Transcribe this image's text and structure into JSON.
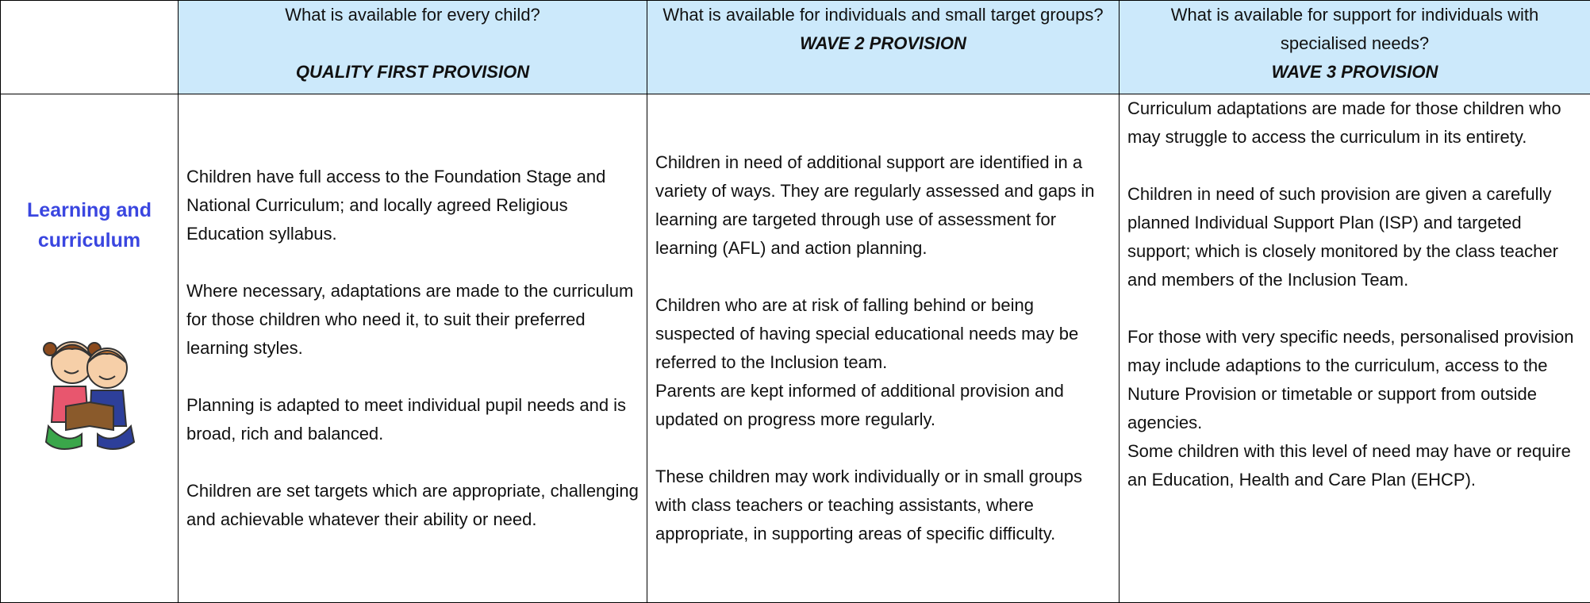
{
  "header": {
    "columns": [
      {
        "question": "What is available for every child?",
        "title": "QUALITY FIRST PROVISION"
      },
      {
        "question": "What is available for individuals and small target groups?",
        "title": "WAVE 2 PROVISION"
      },
      {
        "question": "What is available for support for individuals with specialised needs?",
        "title": "WAVE 3 PROVISION"
      }
    ]
  },
  "rows": [
    {
      "label": "Learning and curriculum",
      "cells": [
        {
          "blocks": [
            [
              "Children have full access to the Foundation Stage and National Curriculum; and locally agreed Religious Education syllabus."
            ],
            [
              "Where necessary, adaptations are made to the curriculum for those children who need it, to suit their preferred learning styles."
            ],
            [
              "Planning is adapted to meet individual pupil needs and is broad, rich and balanced."
            ],
            [
              "Children are set targets which are appropriate, challenging and achievable whatever their ability or need."
            ]
          ]
        },
        {
          "blocks": [
            [
              "Children in need of additional support are identified in a variety of ways. They are regularly assessed and gaps in learning are targeted through use of assessment for learning (AFL) and action planning."
            ],
            [
              "Children who are at risk of falling behind or being suspected of having special educational needs may be referred to the Inclusion team.",
              "Parents are kept informed of additional provision and updated on progress more regularly."
            ],
            [
              "These children may work individually or in small groups with class teachers or teaching assistants, where appropriate, in supporting areas of specific difficulty."
            ]
          ]
        },
        {
          "blocks": [
            [
              "Curriculum adaptations are made for those children who may struggle to access the curriculum in its entirety."
            ],
            [
              "Children in need of such provision are given a carefully planned Individual Support Plan (ISP) and targeted support; which is closely monitored by the class teacher and members of the Inclusion Team."
            ],
            [
              "For those with very specific needs, personalised provision may include adaptions to the curriculum, access to the Nuture Provision or timetable or support from outside agencies.",
              "Some children with this level of need may have or require an Education, Health and Care Plan (EHCP)."
            ]
          ]
        }
      ]
    }
  ]
}
